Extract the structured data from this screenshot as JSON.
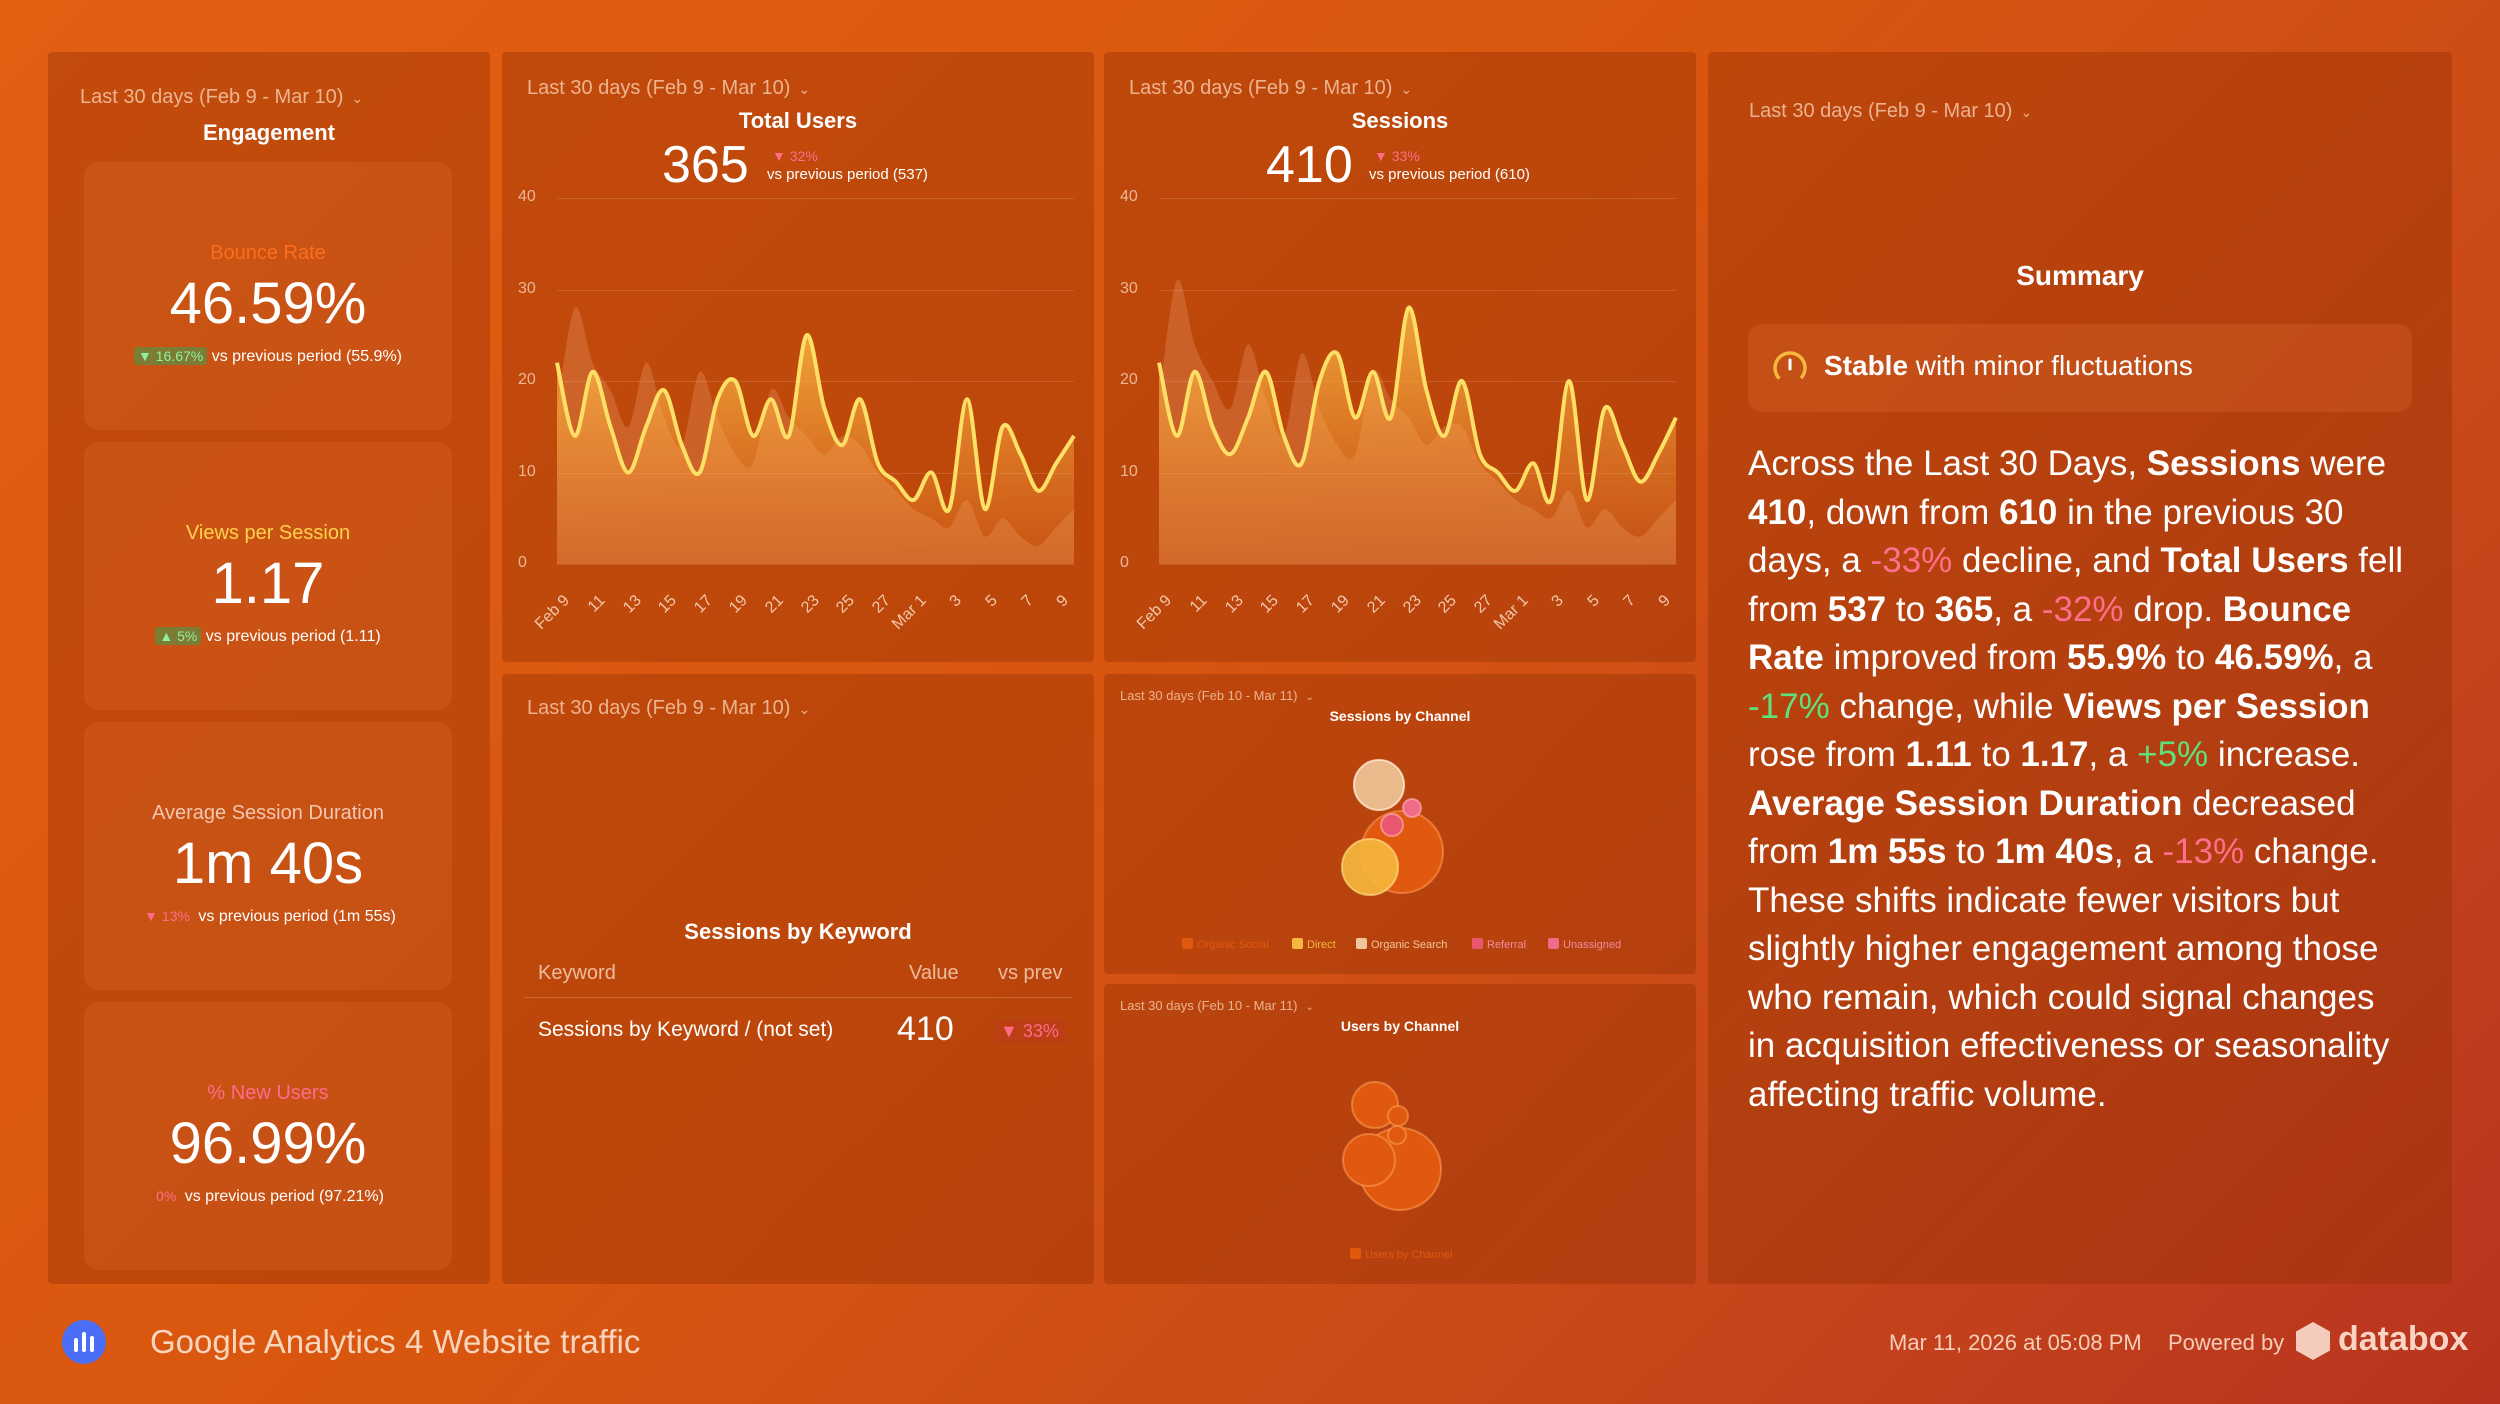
{
  "engagement": {
    "date_range": "Last 30 days (Feb 9 - Mar 10)",
    "title": "Engagement",
    "tiles": [
      {
        "label": "Bounce Rate",
        "label_color": "#ff6d1a",
        "value": "46.59%",
        "change": "▼ 16.67%",
        "change_dir": "up",
        "comparison": "vs previous period (55.9%)"
      },
      {
        "label": "Views per Session",
        "label_color": "#ffd24d",
        "value": "1.17",
        "change": "▲ 5%",
        "change_dir": "up",
        "comparison": "vs previous period (1.11)"
      },
      {
        "label": "Average Session Duration",
        "label_color": "#f3c6b0",
        "value": "1m 40s",
        "change": "▼ 13%",
        "change_dir": "down",
        "comparison": "vs previous period (1m 55s)"
      },
      {
        "label": "% New Users",
        "label_color": "#ff6b8a",
        "value": "96.99%",
        "change": "0%",
        "change_dir": "down",
        "comparison": "vs previous period (97.21%)"
      }
    ]
  },
  "total_users": {
    "date_range": "Last 30 days (Feb 9 - Mar 10)",
    "title": "Total Users",
    "value": "365",
    "change": "▼ 32%",
    "comparison": "vs previous period (537)"
  },
  "sessions": {
    "date_range": "Last 30 days (Feb 9 - Mar 10)",
    "title": "Sessions",
    "value": "410",
    "change": "▼ 33%",
    "comparison": "vs previous period (610)"
  },
  "keyword_table": {
    "date_range": "Last 30 days (Feb 9 - Mar 10)",
    "title": "Sessions by Keyword",
    "headers": [
      "Keyword",
      "Value",
      "vs prev"
    ],
    "rows": [
      {
        "keyword": "Sessions by Keyword / (not set)",
        "value": "410",
        "change": "▼ 33%"
      }
    ]
  },
  "sessions_by_channel": {
    "date_range": "Last 30 days (Feb 10 - Mar 11)",
    "title": "Sessions by Channel",
    "legend": [
      {
        "label": "Organic Social",
        "color": "#e0590f"
      },
      {
        "label": "Direct",
        "color": "#f5b83d"
      },
      {
        "label": "Organic Search",
        "color": "#f0c79a"
      },
      {
        "label": "Referral",
        "color": "#e8566f"
      },
      {
        "label": "Unassigned",
        "color": "#f06a8a"
      }
    ]
  },
  "users_by_channel": {
    "date_range": "Last 30 days (Feb 10 - Mar 11)",
    "title": "Users by Channel",
    "legend": [
      {
        "label": "Users by Channel",
        "color": "#e0590f"
      }
    ]
  },
  "summary": {
    "date_range": "Last 30 days (Feb 9 - Mar 10)",
    "title": "Summary",
    "status_bold": "Stable",
    "status_rest": " with minor fluctuations",
    "p": {
      "t1": "Across the Last 30 Days, ",
      "b1": "Sessions",
      "t2": " were ",
      "b2": "410",
      "t3": ", down from ",
      "b3": "610",
      "t4": " in the previous 30 days, a ",
      "n1": "-33%",
      "t5": " decline, and ",
      "b4": "Total Users",
      "t6": " fell from ",
      "b5": "537",
      "t7": " to ",
      "b6": "365",
      "t8": ", a ",
      "n2": "-32%",
      "t9": " drop. ",
      "b7": "Bounce Rate",
      "t10": " improved from ",
      "b8": "55.9%",
      "t11": " to ",
      "b9": "46.59%",
      "t12": ", a ",
      "p1": "-17%",
      "t13": " change, while ",
      "b10": "Views per Session",
      "t14": " rose from ",
      "b11": "1.11",
      "t15": " to ",
      "b12": "1.17",
      "t16": ", a ",
      "p2": "+5%",
      "t17": " increase. ",
      "b13": "Average Session Duration",
      "t18": " decreased from ",
      "b14": "1m 55s",
      "t19": " to ",
      "b15": "1m 40s",
      "t20": ", a ",
      "n3": "-13%",
      "t21": " change. These shifts indicate fewer visitors but slightly higher engagement among those who remain, which could signal changes in acquisition effectiveness or seasonality affecting traffic volume."
    }
  },
  "footer": {
    "title": "Google Analytics 4 Website traffic",
    "timestamp": "Mar 11, 2026 at 05:08 PM",
    "powered_by": "Powered by",
    "brand": "databox"
  },
  "chart_data": [
    {
      "type": "area",
      "title": "Total Users",
      "ylim": [
        0,
        40
      ],
      "yticks": [
        0,
        10,
        20,
        30,
        40
      ],
      "x_tick_labels": [
        "Feb 9",
        "11",
        "13",
        "15",
        "17",
        "19",
        "21",
        "23",
        "25",
        "27",
        "Mar 1",
        "3",
        "5",
        "7",
        "9"
      ],
      "series": [
        {
          "values": [
            22,
            14,
            21,
            15,
            10,
            15,
            19,
            13,
            10,
            18,
            20,
            14,
            18,
            14,
            25,
            17,
            13,
            18,
            11,
            9,
            7,
            10,
            6,
            18,
            6,
            15,
            12,
            8,
            11,
            14
          ]
        },
        {
          "values": [
            17,
            28,
            22,
            19,
            15,
            22,
            16,
            13,
            21,
            16,
            12,
            11,
            19,
            16,
            14,
            12,
            14,
            13,
            10,
            8,
            6,
            5,
            4,
            7,
            3,
            5,
            3,
            2,
            4,
            6
          ]
        }
      ]
    },
    {
      "type": "area",
      "title": "Sessions",
      "ylim": [
        0,
        40
      ],
      "yticks": [
        0,
        10,
        20,
        30,
        40
      ],
      "x_tick_labels": [
        "Feb 9",
        "11",
        "13",
        "15",
        "17",
        "19",
        "21",
        "23",
        "25",
        "27",
        "Mar 1",
        "3",
        "5",
        "7",
        "9"
      ],
      "series": [
        {
          "values": [
            22,
            14,
            21,
            15,
            12,
            16,
            21,
            14,
            11,
            20,
            23,
            16,
            21,
            16,
            28,
            19,
            14,
            20,
            12,
            10,
            8,
            11,
            7,
            20,
            7,
            17,
            13,
            9,
            12,
            16
          ]
        },
        {
          "values": [
            18,
            31,
            24,
            20,
            17,
            24,
            18,
            14,
            23,
            17,
            13,
            12,
            21,
            18,
            16,
            13,
            15,
            15,
            11,
            9,
            7,
            6,
            5,
            8,
            4,
            6,
            4,
            3,
            5,
            7
          ]
        }
      ]
    }
  ]
}
